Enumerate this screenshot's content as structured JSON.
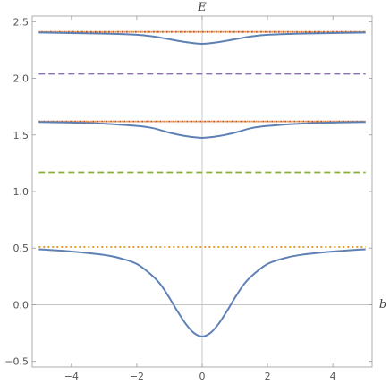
{
  "chart_data": {
    "type": "line",
    "title": "",
    "xlabel": "b",
    "ylabel": "E",
    "xlim": [
      -5.2,
      5.2
    ],
    "ylim": [
      -0.55,
      2.55
    ],
    "xticks": [
      -4,
      -2,
      0,
      2,
      4
    ],
    "xtick_labels": [
      "−4",
      "−2",
      "0",
      "2",
      "4"
    ],
    "yticks": [
      -0.5,
      0.0,
      0.5,
      1.0,
      1.5,
      2.0,
      2.5
    ],
    "ytick_labels": [
      "−0.5",
      "0.0",
      "0.5",
      "1.0",
      "1.5",
      "2.0",
      "2.5"
    ],
    "grid": false,
    "legend": "none",
    "reference_lines": [
      {
        "y": 2.41,
        "color": "#E09A2A",
        "style": "dotted"
      },
      {
        "y": 2.41,
        "color": "#C8473A",
        "style": "dotted"
      },
      {
        "y": 2.04,
        "color": "#8B6FB0",
        "style": "dashed"
      },
      {
        "y": 1.62,
        "color": "#E09A2A",
        "style": "dotted"
      },
      {
        "y": 1.62,
        "color": "#C8473A",
        "style": "dotted"
      },
      {
        "y": 1.17,
        "color": "#86B039",
        "style": "dashed"
      },
      {
        "y": 0.51,
        "color": "#E09A2A",
        "style": "dotted"
      }
    ],
    "series": [
      {
        "color": "#5E81B5",
        "style": "solid",
        "x": [
          -5,
          -4,
          -3,
          -2.5,
          -2,
          -1.5,
          -1.25,
          -1,
          -0.75,
          -0.5,
          -0.25,
          0,
          0.25,
          0.5,
          0.75,
          1,
          1.25,
          1.5,
          2,
          2.5,
          3,
          4,
          5
        ],
        "y": [
          0.49,
          0.47,
          0.44,
          0.41,
          0.36,
          0.25,
          0.17,
          0.06,
          -0.06,
          -0.17,
          -0.25,
          -0.28,
          -0.25,
          -0.17,
          -0.06,
          0.06,
          0.17,
          0.25,
          0.36,
          0.41,
          0.44,
          0.47,
          0.49
        ]
      },
      {
        "color": "#5E81B5",
        "style": "solid",
        "x": [
          -5,
          -4,
          -3,
          -2,
          -1.5,
          -1,
          -0.5,
          0,
          0.5,
          1,
          1.5,
          2,
          3,
          4,
          5
        ],
        "y": [
          1.615,
          1.61,
          1.6,
          1.58,
          1.56,
          1.52,
          1.49,
          1.475,
          1.49,
          1.52,
          1.56,
          1.58,
          1.6,
          1.61,
          1.615
        ]
      },
      {
        "color": "#5E81B5",
        "style": "solid",
        "x": [
          -5,
          -4,
          -3,
          -2,
          -1.5,
          -1,
          -0.5,
          0,
          0.5,
          1,
          1.5,
          2,
          3,
          4,
          5
        ],
        "y": [
          2.405,
          2.4,
          2.395,
          2.385,
          2.37,
          2.345,
          2.32,
          2.305,
          2.32,
          2.345,
          2.37,
          2.385,
          2.395,
          2.4,
          2.405
        ]
      }
    ]
  }
}
